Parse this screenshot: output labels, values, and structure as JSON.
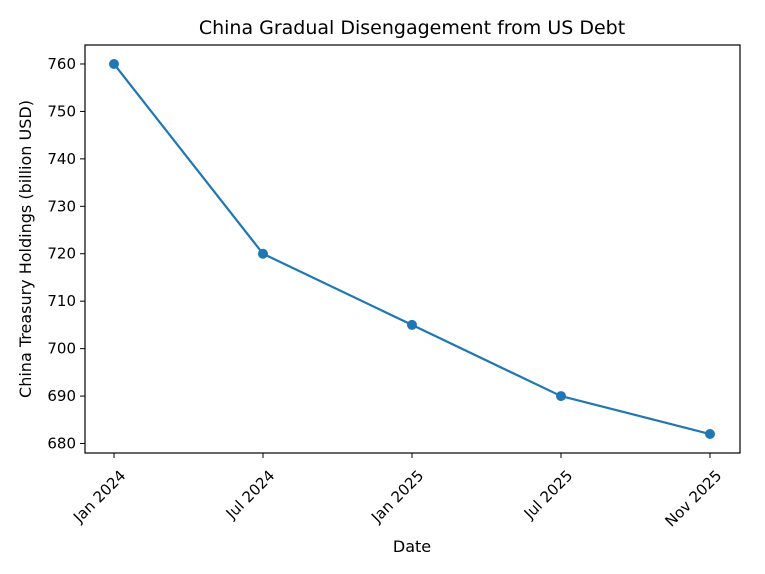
{
  "chart_data": {
    "type": "line",
    "title": "China Gradual Disengagement from US Debt",
    "xlabel": "Date",
    "ylabel": "China Treasury Holdings (billion USD)",
    "categories": [
      "Jan 2024",
      "Jul 2024",
      "Jan 2025",
      "Jul 2025",
      "Nov 2025"
    ],
    "series": [
      {
        "values": [
          760,
          720,
          705,
          690,
          682
        ]
      }
    ],
    "yticks": [
      680,
      690,
      700,
      710,
      720,
      730,
      740,
      750,
      760
    ],
    "ylim": [
      678,
      764
    ],
    "grid": false,
    "marker": "circle",
    "color": "#1f77b4"
  }
}
